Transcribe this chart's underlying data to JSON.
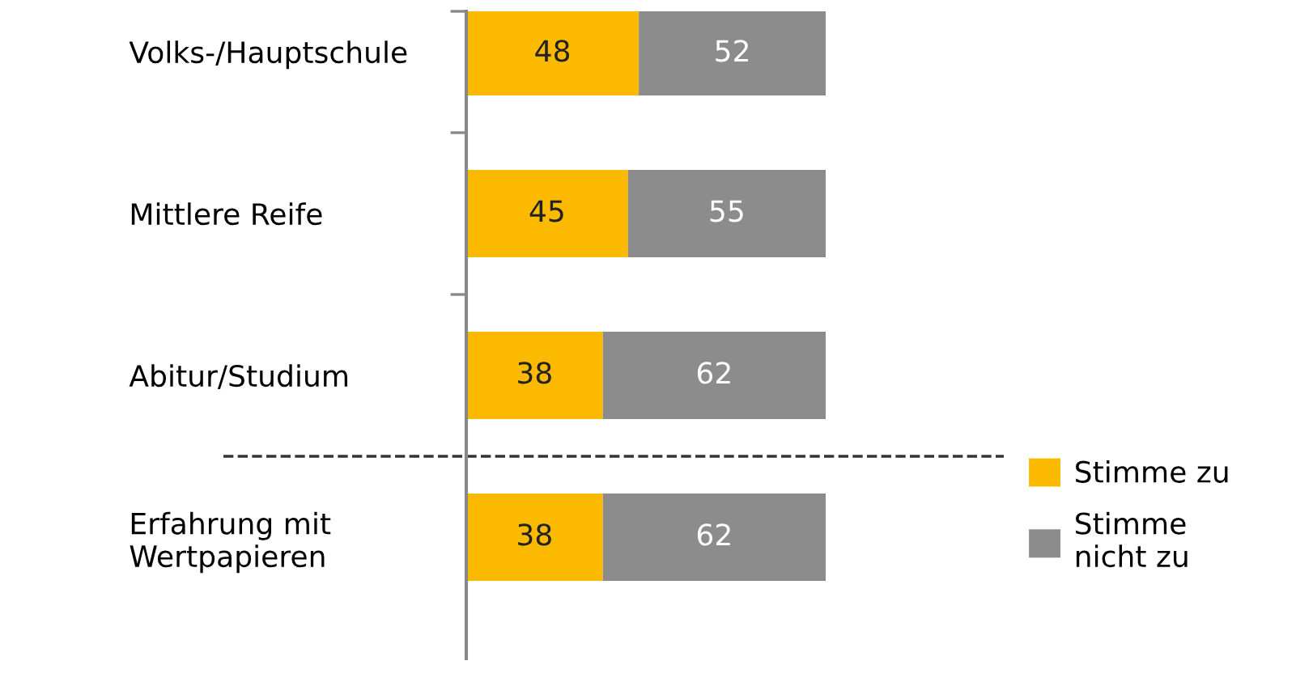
{
  "chart_data": {
    "type": "bar",
    "orientation": "horizontal",
    "stacked": true,
    "data_labels": true,
    "categories": [
      "Volks-/Hauptschule",
      "Mittlere Reife",
      "Abitur/Studium",
      "Erfahrung mit\nWertpapieren"
    ],
    "series": [
      {
        "name": "Stimme zu",
        "color": "#fbb900",
        "values": [
          48,
          45,
          38,
          38
        ]
      },
      {
        "name": "Stimme\nnicht zu",
        "color": "#8c8c8c",
        "values": [
          52,
          55,
          62,
          62
        ]
      }
    ],
    "legend": "right",
    "grid": false
  }
}
